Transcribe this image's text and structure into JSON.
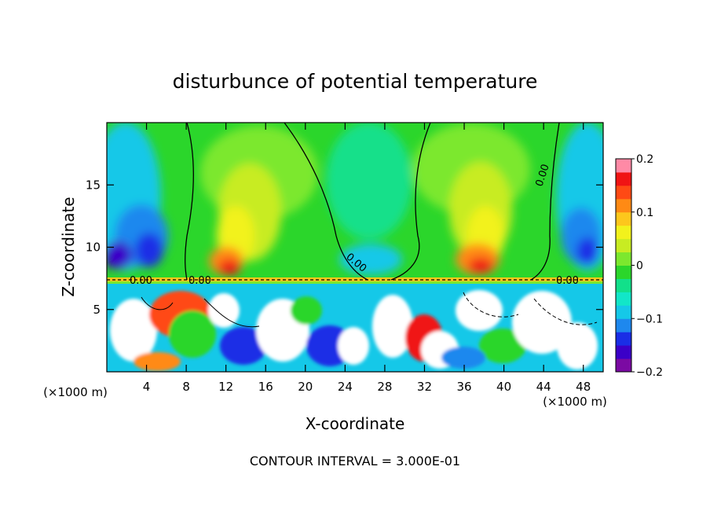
{
  "chart_data": {
    "type": "heatmap",
    "title": "disturbunce of potential temperature",
    "xlabel": "X-coordinate",
    "ylabel": "Z-coordinate",
    "x_unit_left": "(×1000 m)",
    "x_unit_right": "(×1000 m)",
    "footer": "CONTOUR INTERVAL = 3.000E-01",
    "xlim": [
      0,
      50
    ],
    "ylim": [
      0,
      20
    ],
    "xticks": [
      4,
      8,
      12,
      16,
      20,
      24,
      28,
      32,
      36,
      40,
      44,
      48
    ],
    "xtick_labels": [
      "4",
      "8",
      "12",
      "16",
      "20",
      "24",
      "28",
      "32",
      "36",
      "40",
      "44",
      "48"
    ],
    "yticks": [
      5,
      10,
      15
    ],
    "ytick_labels": [
      "5",
      "10",
      "15"
    ],
    "colorbar": {
      "min": -0.2,
      "max": 0.2,
      "ticks": [
        0.2,
        0.1,
        0,
        -0.1,
        -0.2
      ],
      "tick_labels": [
        "0.2",
        "0.1",
        "0",
        "−0.1",
        "−0.2"
      ],
      "colors": [
        "#7b0aa3",
        "#3b00c8",
        "#1a2ee6",
        "#1e88ee",
        "#15c8e8",
        "#12e6c8",
        "#12e08a",
        "#2bd62b",
        "#7ce82e",
        "#c8ec22",
        "#f2f21c",
        "#fdc71c",
        "#ff8a14",
        "#ff4a14",
        "#f01414",
        "#ff8aa6"
      ]
    },
    "contour_labels": [
      "0.00",
      "0.00",
      "0.00",
      "0.00",
      "0.00"
    ],
    "contour_interval": 0.3,
    "grid": false,
    "colorbar_placement": "right"
  }
}
